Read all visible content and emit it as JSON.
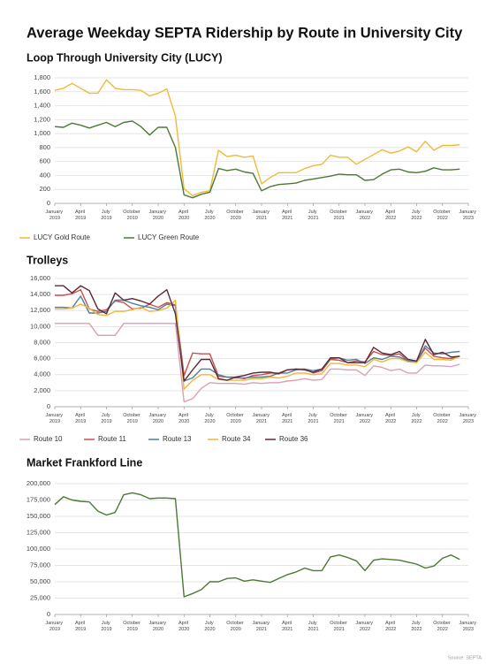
{
  "title": "Average Weekday SEPTA Ridership by Route in University City",
  "source": "Source: SEPTA",
  "chart_data": [
    {
      "type": "line",
      "title": "Loop Through University City (LUCY)",
      "categories": [
        "January 2019",
        null,
        null,
        "April 2019",
        null,
        null,
        "July 2019",
        null,
        null,
        "October 2019",
        null,
        null,
        "January 2020",
        null,
        null,
        "April 2020",
        null,
        null,
        "July 2020",
        null,
        null,
        "October 2020",
        null,
        null,
        "January 2021",
        null,
        null,
        "April 2021",
        null,
        null,
        "July 2021",
        null,
        null,
        "October 2021",
        null,
        null,
        "January 2022",
        null,
        null,
        "April 2022",
        null,
        null,
        "July 2022",
        null,
        null,
        "October 2022",
        null,
        null,
        "January 2023"
      ],
      "series": [
        {
          "name": "LUCY Gold Route",
          "color": "#f0b93a",
          "values": [
            1620,
            1650,
            1720,
            1650,
            1580,
            1580,
            1770,
            1650,
            1630,
            1630,
            1620,
            1540,
            1580,
            1640,
            1250,
            210,
            110,
            160,
            180,
            760,
            670,
            690,
            660,
            680,
            280,
            370,
            440,
            440,
            440,
            500,
            540,
            560,
            690,
            660,
            660,
            560,
            630,
            700,
            770,
            720,
            750,
            810,
            740,
            890,
            760,
            830,
            830,
            840,
            null
          ]
        },
        {
          "name": "LUCY Green Route",
          "color": "#4a7a32",
          "values": [
            1100,
            1090,
            1150,
            1120,
            1080,
            1120,
            1160,
            1100,
            1160,
            1180,
            1100,
            980,
            1090,
            1090,
            800,
            120,
            80,
            130,
            160,
            500,
            470,
            490,
            450,
            430,
            180,
            240,
            270,
            280,
            290,
            330,
            350,
            370,
            390,
            420,
            410,
            410,
            330,
            340,
            420,
            480,
            490,
            450,
            440,
            460,
            510,
            480,
            480,
            490,
            null
          ]
        }
      ],
      "ylim": [
        0,
        1800
      ],
      "yticks": [
        0,
        200,
        400,
        600,
        800,
        {
          "value": 1000,
          "label": "1,000"
        },
        {
          "value": 1200,
          "label": "1,200"
        },
        {
          "value": 1400,
          "label": "1,400"
        },
        {
          "value": 1600,
          "label": "1,600"
        },
        {
          "value": 1800,
          "label": "1,800"
        }
      ],
      "grid": true
    },
    {
      "type": "line",
      "title": "Trolleys",
      "categories": [
        "January 2019",
        null,
        null,
        "April 2019",
        null,
        null,
        "July 2019",
        null,
        null,
        "October 2019",
        null,
        null,
        "January 2020",
        null,
        null,
        "April 2020",
        null,
        null,
        "July 2020",
        null,
        null,
        "October 2020",
        null,
        null,
        "January 2021",
        null,
        null,
        "April 2021",
        null,
        null,
        "July 2021",
        null,
        null,
        "October 2021",
        null,
        null,
        "January 2022",
        null,
        null,
        "April 2022",
        null,
        null,
        "July 2022",
        null,
        null,
        "October 2022",
        null,
        null,
        "January 2023"
      ],
      "series": [
        {
          "name": "Route 10",
          "color": "#d9a0b8",
          "values": [
            10400,
            10400,
            10400,
            10400,
            10400,
            8900,
            8900,
            8900,
            10400,
            10400,
            10400,
            10400,
            10400,
            10400,
            10400,
            600,
            1000,
            2300,
            3000,
            2900,
            2900,
            2900,
            2800,
            3000,
            2900,
            3000,
            3000,
            3200,
            3300,
            3500,
            3300,
            3400,
            4700,
            4700,
            4600,
            4600,
            3900,
            5100,
            4900,
            4500,
            4700,
            4200,
            4200,
            5200,
            5100,
            5100,
            5000,
            5300,
            null
          ]
        },
        {
          "name": "Route 11",
          "color": "#c9504f",
          "values": [
            13900,
            13900,
            14100,
            14600,
            12200,
            11900,
            12100,
            13200,
            13000,
            12200,
            12300,
            12800,
            12400,
            13000,
            12700,
            3900,
            6700,
            6600,
            6600,
            3800,
            3700,
            3700,
            3500,
            3900,
            4000,
            4200,
            4200,
            4600,
            4700,
            4700,
            4200,
            4500,
            5900,
            5800,
            5500,
            5700,
            5600,
            6900,
            6500,
            6400,
            6600,
            5700,
            5600,
            7300,
            6300,
            6100,
            6000,
            6300,
            null
          ]
        },
        {
          "name": "Route 13",
          "color": "#4e7f99",
          "values": [
            12400,
            12400,
            12300,
            13800,
            11700,
            11700,
            11900,
            13300,
            13300,
            12900,
            12600,
            12400,
            12100,
            12800,
            12600,
            3200,
            3600,
            4700,
            4700,
            4000,
            3700,
            3600,
            3600,
            3700,
            3700,
            3800,
            4200,
            4200,
            4600,
            4700,
            4500,
            4700,
            6000,
            6100,
            5800,
            5900,
            5400,
            6100,
            5900,
            6300,
            6200,
            5700,
            5600,
            7600,
            6700,
            6600,
            6800,
            6900,
            null
          ]
        },
        {
          "name": "Route 34",
          "color": "#f2b53a",
          "values": [
            12200,
            12200,
            12300,
            12800,
            12300,
            11500,
            11400,
            11900,
            11900,
            12100,
            12400,
            11900,
            12000,
            12300,
            13300,
            2200,
            3300,
            4000,
            4000,
            3400,
            3300,
            3300,
            3300,
            3500,
            3500,
            3700,
            3600,
            3800,
            4200,
            4200,
            4000,
            4100,
            5400,
            5400,
            5200,
            5200,
            5000,
            5900,
            5600,
            6000,
            6000,
            5600,
            5500,
            6800,
            5900,
            5900,
            5800,
            6300,
            null
          ]
        },
        {
          "name": "Route 36",
          "color": "#5b2838",
          "values": [
            15100,
            15100,
            14200,
            15100,
            14500,
            12200,
            11600,
            14200,
            13300,
            13500,
            13200,
            12800,
            13800,
            14600,
            11600,
            3200,
            4600,
            5900,
            5900,
            3500,
            3300,
            3700,
            3900,
            4200,
            4300,
            4300,
            4100,
            4600,
            4700,
            4600,
            4300,
            4700,
            6100,
            6100,
            5500,
            5500,
            5500,
            7400,
            6700,
            6500,
            6900,
            5900,
            5700,
            8400,
            6500,
            6800,
            6200,
            6300,
            null
          ]
        }
      ],
      "ylim": [
        0,
        16000
      ],
      "yticks": [
        0,
        {
          "value": 2000,
          "label": "2,000"
        },
        {
          "value": 4000,
          "label": "4,000"
        },
        {
          "value": 6000,
          "label": "6,000"
        },
        {
          "value": 8000,
          "label": "8,000"
        },
        {
          "value": 10000,
          "label": "10,000"
        },
        {
          "value": 12000,
          "label": "12,000"
        },
        {
          "value": 14000,
          "label": "14,000"
        },
        {
          "value": 16000,
          "label": "16,000"
        }
      ],
      "grid": true
    },
    {
      "type": "line",
      "title": "Market Frankford Line",
      "categories": [
        "January 2019",
        null,
        null,
        "April 2019",
        null,
        null,
        "July 2019",
        null,
        null,
        "October 2019",
        null,
        null,
        "January 2020",
        null,
        null,
        "April 2020",
        null,
        null,
        "July 2020",
        null,
        null,
        "October 2020",
        null,
        null,
        "January 2021",
        null,
        null,
        "April 2021",
        null,
        null,
        "July 2021",
        null,
        null,
        "October 2021",
        null,
        null,
        "January 2022",
        null,
        null,
        "April 2022",
        null,
        null,
        "July 2022",
        null,
        null,
        "October 2022",
        null,
        null,
        "January 2023"
      ],
      "series": [
        {
          "color": "#4a7a32",
          "values": [
            168000,
            180000,
            175000,
            173000,
            172000,
            158000,
            152000,
            156000,
            183000,
            186000,
            183000,
            177000,
            178000,
            178000,
            177000,
            27000,
            32000,
            38000,
            50000,
            50000,
            55000,
            56000,
            51000,
            53000,
            51000,
            49000,
            55000,
            61000,
            65000,
            71000,
            67000,
            67000,
            88000,
            91000,
            87000,
            82000,
            67000,
            83000,
            85000,
            84000,
            83000,
            80000,
            77000,
            71000,
            74000,
            86000,
            91000,
            84000,
            null
          ]
        }
      ],
      "ylim": [
        0,
        200000
      ],
      "yticks": [
        0,
        {
          "value": 25000,
          "label": "25,000"
        },
        {
          "value": 50000,
          "label": "50,000"
        },
        {
          "value": 75000,
          "label": "75,000"
        },
        {
          "value": 100000,
          "label": "100,000"
        },
        {
          "value": 125000,
          "label": "125,000"
        },
        {
          "value": 150000,
          "label": "150,000"
        },
        {
          "value": 175000,
          "label": "175,000"
        },
        {
          "value": 200000,
          "label": "200,000"
        }
      ],
      "grid": true
    }
  ]
}
